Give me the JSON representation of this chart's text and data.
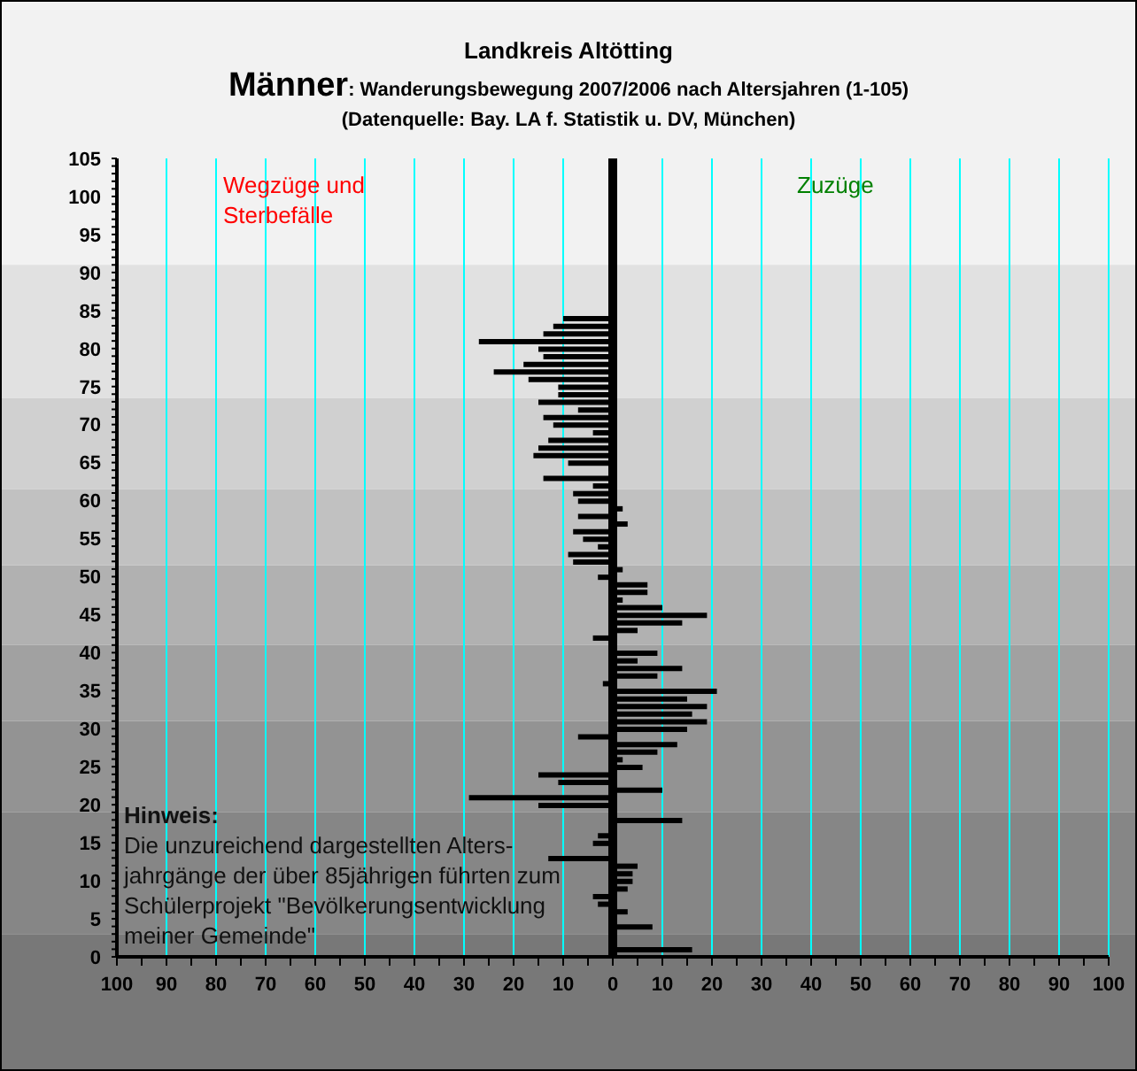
{
  "chart_data": {
    "type": "bar",
    "orientation": "horizontal",
    "title": "Landkreis Altötting",
    "subtitle": "Männer: Wanderungsbewegung 2007/2006 nach Altersjahren (1-105)",
    "annotations": [
      "(Datenquelle: Bay. LA f. Statistik u. DV, München)",
      "Wegzüge und Sterbefälle",
      "Zuzüge",
      "Hinweis:\nDie unzureichend dargestellten Alters-\njahrgänge der über 85jährigen führten zum\nSchülerprojekt \"Bevölkerungsentwicklung\nmeiner Gemeinde\""
    ],
    "x": [
      1,
      2,
      3,
      4,
      5,
      6,
      7,
      8,
      9,
      10,
      11,
      12,
      13,
      14,
      15,
      16,
      17,
      18,
      19,
      20,
      21,
      22,
      23,
      24,
      25,
      26,
      27,
      28,
      29,
      30,
      31,
      32,
      33,
      34,
      35,
      36,
      37,
      38,
      39,
      40,
      41,
      42,
      43,
      44,
      45,
      46,
      47,
      48,
      49,
      50,
      51,
      52,
      53,
      54,
      55,
      56,
      57,
      58,
      59,
      60,
      61,
      62,
      63,
      64,
      65,
      66,
      67,
      68,
      69,
      70,
      71,
      72,
      73,
      74,
      75,
      76,
      77,
      78,
      79,
      80,
      81,
      82,
      83,
      84
    ],
    "values": [
      16,
      0,
      0,
      8,
      0,
      3,
      -3,
      -4,
      3,
      4,
      4,
      5,
      -13,
      0,
      -4,
      -3,
      0,
      14,
      0,
      -15,
      -29,
      10,
      -11,
      -15,
      6,
      2,
      9,
      13,
      -7,
      15,
      19,
      16,
      19,
      15,
      21,
      -2,
      9,
      14,
      5,
      9,
      0,
      -4,
      5,
      14,
      19,
      10,
      2,
      7,
      7,
      -3,
      2,
      -8,
      -9,
      -3,
      -6,
      -8,
      3,
      -7,
      2,
      -7,
      -8,
      -4,
      -14,
      0,
      -9,
      -16,
      -15,
      -13,
      -4,
      -12,
      -14,
      -7,
      -15,
      -11,
      -11,
      -17,
      -24,
      -18,
      -14,
      -15,
      -27,
      -14,
      -12,
      -10
    ],
    "color": "#000000",
    "xlim": [
      -100,
      100
    ],
    "xticks": [
      {
        "value": -100,
        "label": "100"
      },
      {
        "value": -95,
        "label": null
      },
      {
        "value": -90,
        "label": "90"
      },
      {
        "value": -85,
        "label": null
      },
      {
        "value": -80,
        "label": "80"
      },
      {
        "value": -75,
        "label": null
      },
      {
        "value": -70,
        "label": "70"
      },
      {
        "value": -65,
        "label": null
      },
      {
        "value": -60,
        "label": "60"
      },
      {
        "value": -55,
        "label": null
      },
      {
        "value": -50,
        "label": "50"
      },
      {
        "value": -45,
        "label": null
      },
      {
        "value": -40,
        "label": "40"
      },
      {
        "value": -35,
        "label": null
      },
      {
        "value": -30,
        "label": "30"
      },
      {
        "value": -25,
        "label": null
      },
      {
        "value": -20,
        "label": "20"
      },
      {
        "value": -15,
        "label": null
      },
      {
        "value": -10,
        "label": "10"
      },
      {
        "value": -5,
        "label": null
      },
      0,
      {
        "value": 5,
        "label": null
      },
      10,
      {
        "value": 15,
        "label": null
      },
      20,
      {
        "value": 25,
        "label": null
      },
      30,
      {
        "value": 35,
        "label": null
      },
      40,
      {
        "value": 45,
        "label": null
      },
      50,
      {
        "value": 55,
        "label": null
      },
      60,
      {
        "value": 65,
        "label": null
      },
      70,
      {
        "value": 75,
        "label": null
      },
      80,
      {
        "value": 85,
        "label": null
      },
      90,
      {
        "value": 95,
        "label": null
      },
      100
    ],
    "ylim": [
      0,
      105
    ],
    "yticks": [
      0,
      {
        "value": 1,
        "label": null
      },
      {
        "value": 2,
        "label": null
      },
      {
        "value": 3,
        "label": null
      },
      {
        "value": 4,
        "label": null
      },
      5,
      {
        "value": 6,
        "label": null
      },
      {
        "value": 7,
        "label": null
      },
      {
        "value": 8,
        "label": null
      },
      {
        "value": 9,
        "label": null
      },
      10,
      {
        "value": 11,
        "label": null
      },
      {
        "value": 12,
        "label": null
      },
      {
        "value": 13,
        "label": null
      },
      {
        "value": 14,
        "label": null
      },
      15,
      {
        "value": 16,
        "label": null
      },
      {
        "value": 17,
        "label": null
      },
      {
        "value": 18,
        "label": null
      },
      {
        "value": 19,
        "label": null
      },
      20,
      {
        "value": 21,
        "label": null
      },
      {
        "value": 22,
        "label": null
      },
      {
        "value": 23,
        "label": null
      },
      {
        "value": 24,
        "label": null
      },
      25,
      {
        "value": 26,
        "label": null
      },
      {
        "value": 27,
        "label": null
      },
      {
        "value": 28,
        "label": null
      },
      {
        "value": 29,
        "label": null
      },
      30,
      {
        "value": 31,
        "label": null
      },
      {
        "value": 32,
        "label": null
      },
      {
        "value": 33,
        "label": null
      },
      {
        "value": 34,
        "label": null
      },
      35,
      {
        "value": 36,
        "label": null
      },
      {
        "value": 37,
        "label": null
      },
      {
        "value": 38,
        "label": null
      },
      {
        "value": 39,
        "label": null
      },
      40,
      {
        "value": 41,
        "label": null
      },
      {
        "value": 42,
        "label": null
      },
      {
        "value": 43,
        "label": null
      },
      {
        "value": 44,
        "label": null
      },
      45,
      {
        "value": 46,
        "label": null
      },
      {
        "value": 47,
        "label": null
      },
      {
        "value": 48,
        "label": null
      },
      {
        "value": 49,
        "label": null
      },
      50,
      {
        "value": 51,
        "label": null
      },
      {
        "value": 52,
        "label": null
      },
      {
        "value": 53,
        "label": null
      },
      {
        "value": 54,
        "label": null
      },
      55,
      {
        "value": 56,
        "label": null
      },
      {
        "value": 57,
        "label": null
      },
      {
        "value": 58,
        "label": null
      },
      {
        "value": 59,
        "label": null
      },
      60,
      {
        "value": 61,
        "label": null
      },
      {
        "value": 62,
        "label": null
      },
      {
        "value": 63,
        "label": null
      },
      {
        "value": 64,
        "label": null
      },
      65,
      {
        "value": 66,
        "label": null
      },
      {
        "value": 67,
        "label": null
      },
      {
        "value": 68,
        "label": null
      },
      {
        "value": 69,
        "label": null
      },
      70,
      {
        "value": 71,
        "label": null
      },
      {
        "value": 72,
        "label": null
      },
      {
        "value": 73,
        "label": null
      },
      {
        "value": 74,
        "label": null
      },
      75,
      {
        "value": 76,
        "label": null
      },
      {
        "value": 77,
        "label": null
      },
      {
        "value": 78,
        "label": null
      },
      {
        "value": 79,
        "label": null
      },
      80,
      {
        "value": 81,
        "label": null
      },
      {
        "value": 82,
        "label": null
      },
      {
        "value": 83,
        "label": null
      },
      {
        "value": 84,
        "label": null
      },
      85,
      {
        "value": 86,
        "label": null
      },
      {
        "value": 87,
        "label": null
      },
      {
        "value": 88,
        "label": null
      },
      {
        "value": 89,
        "label": null
      },
      90,
      {
        "value": 91,
        "label": null
      },
      {
        "value": 92,
        "label": null
      },
      {
        "value": 93,
        "label": null
      },
      {
        "value": 94,
        "label": null
      },
      95,
      {
        "value": 96,
        "label": null
      },
      {
        "value": 97,
        "label": null
      },
      {
        "value": 98,
        "label": null
      },
      {
        "value": 99,
        "label": null
      },
      100,
      {
        "value": 101,
        "label": null
      },
      {
        "value": 102,
        "label": null
      },
      {
        "value": 103,
        "label": null
      },
      {
        "value": 104,
        "label": null
      },
      105
    ],
    "grid": "x",
    "ref_lines": [
      {
        "axis": "x",
        "value": 0,
        "color": "#000000"
      }
    ],
    "bands": [
      {
        "axis": "y",
        "from": 0,
        "to": 3,
        "color": "#787878"
      },
      {
        "axis": "y",
        "from": 3,
        "to": 19,
        "color": "#868686"
      },
      {
        "axis": "y",
        "from": 19,
        "to": 31,
        "color": "#939393"
      },
      {
        "axis": "y",
        "from": 31,
        "to": 41,
        "color": "#a1a1a1"
      },
      {
        "axis": "y",
        "from": 41,
        "to": 51.5,
        "color": "#b1b1b1"
      },
      {
        "axis": "y",
        "from": 51.5,
        "to": 61.5,
        "color": "#c1c1c1"
      },
      {
        "axis": "y",
        "from": 61.5,
        "to": 73.5,
        "color": "#d0d0d0"
      },
      {
        "axis": "y",
        "from": 73.5,
        "to": 91,
        "color": "#e1e1e1"
      }
    ]
  }
}
